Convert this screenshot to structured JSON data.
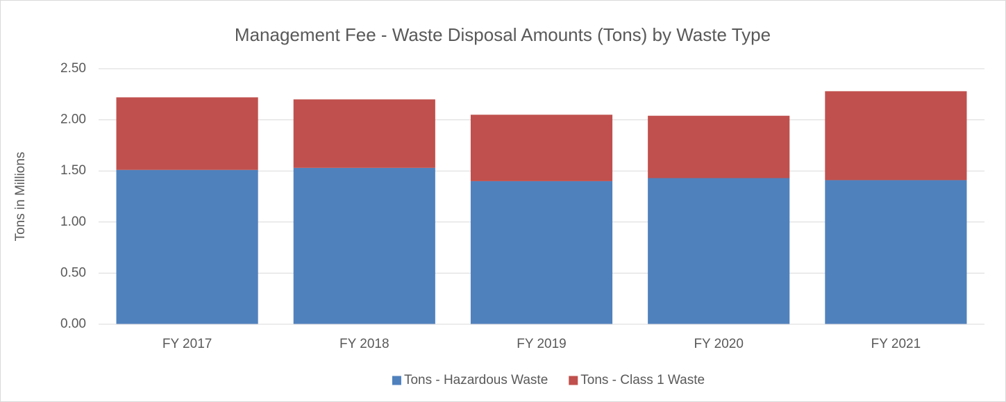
{
  "chart_data": {
    "type": "stacked_bar",
    "title": "Management Fee - Waste Disposal Amounts (Tons) by Waste Type",
    "y_label": "Tons in Millions",
    "categories": [
      "FY 2017",
      "FY 2018",
      "FY 2019",
      "FY 2020",
      "FY 2021"
    ],
    "series": [
      {
        "name": "Tons - Hazardous Waste",
        "color": "#4f81bd",
        "values": [
          1.51,
          1.53,
          1.4,
          1.43,
          1.41
        ]
      },
      {
        "name": "Tons - Class 1 Waste",
        "color": "#c0504d",
        "values": [
          0.71,
          0.67,
          0.65,
          0.61,
          0.87
        ]
      }
    ],
    "ylim": [
      0,
      2.5
    ],
    "yticks": [
      {
        "value": 0,
        "label": "0.00"
      },
      {
        "value": 0.5,
        "label": "0.50"
      },
      {
        "value": 1,
        "label": "1.00"
      },
      {
        "value": 1.5,
        "label": "1.50"
      },
      {
        "value": 2,
        "label": "2.00"
      },
      {
        "value": 2.5,
        "label": "2.50"
      }
    ],
    "grid": true,
    "legend": "bottom"
  }
}
